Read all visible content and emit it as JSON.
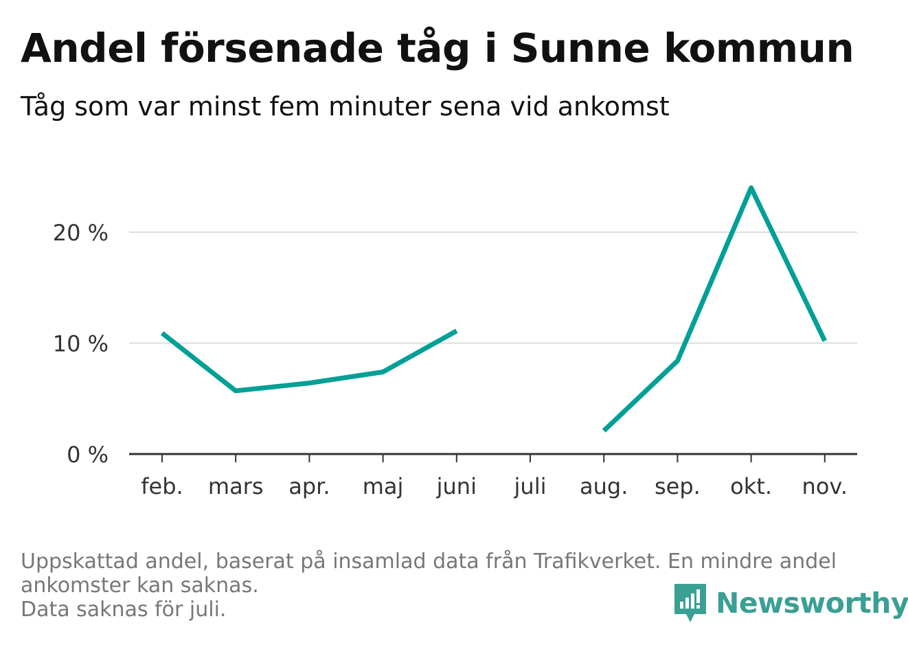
{
  "title": "Andel försenade tåg i Sunne kommun",
  "subtitle": "Tåg som var minst fem minuter sena vid ankomst",
  "footnote": {
    "line1": "Uppskattad andel, baserat på insamlad data från Trafikverket. En mindre andel",
    "line2": "ankomster kan saknas.",
    "line3": "Data saknas för juli."
  },
  "brand": {
    "name": "Newsworthy",
    "color": "#3a9f94"
  },
  "chart_data": {
    "type": "line",
    "title": "Andel försenade tåg i Sunne kommun",
    "subtitle": "Tåg som var minst fem minuter sena vid ankomst",
    "categories": [
      "feb.",
      "mars",
      "apr.",
      "maj",
      "juni",
      "juli",
      "aug.",
      "sep.",
      "okt.",
      "nov."
    ],
    "series": [
      {
        "values": [
          10.9,
          5.7,
          6.4,
          7.4,
          11.1,
          null,
          2.1,
          8.4,
          24.0,
          10.2
        ],
        "color": "#00a096"
      }
    ],
    "yticks": [
      0,
      10,
      20
    ],
    "ytick_labels": [
      "0 %",
      "10 %",
      "20 %"
    ],
    "ylim": [
      0,
      25
    ],
    "grid": true,
    "legend": "none"
  }
}
